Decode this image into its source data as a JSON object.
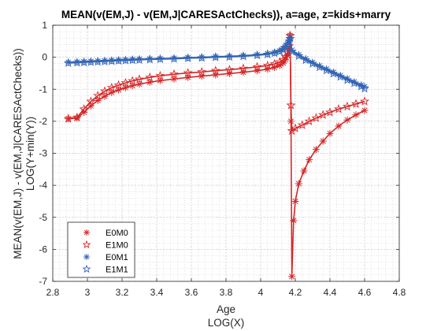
{
  "chart_data": {
    "type": "line",
    "title": "MEAN(v(EM,J) - v(EM,J|CARESActChecks)), a=age, z=kids+marry",
    "xlabel": "Age",
    "xlabel2": "LOG(X)",
    "ylabel": "MEAN(v(EM,J) - v(EM,J|CARESActChecks))",
    "ylabel2": "LOG(Y+min(Y))",
    "xlim": [
      2.8,
      4.8
    ],
    "ylim": [
      -7,
      1
    ],
    "xticks": [
      2.8,
      3,
      3.2,
      3.4,
      3.6,
      3.8,
      4,
      4.2,
      4.4,
      4.6,
      4.8
    ],
    "xtick_labels": [
      "2.8",
      "3",
      "3.2",
      "3.4",
      "3.6",
      "3.8",
      "4",
      "4.2",
      "4.4",
      "4.6",
      "4.8"
    ],
    "yticks": [
      -7,
      -6,
      -5,
      -4,
      -3,
      -2,
      -1,
      0,
      1
    ],
    "ytick_labels": [
      "-7",
      "-6",
      "-5",
      "-4",
      "-3",
      "-2",
      "-1",
      "0",
      "1"
    ],
    "grid": true,
    "minor_grid": true,
    "legend_placement": "bottom-left",
    "series": [
      {
        "name": "E0M0",
        "marker": "asterisk",
        "color": "#d62728",
        "x": [
          2.89,
          2.94,
          2.98,
          3.02,
          3.06,
          3.1,
          3.14,
          3.18,
          3.22,
          3.26,
          3.3,
          3.36,
          3.42,
          3.5,
          3.58,
          3.66,
          3.74,
          3.82,
          3.9,
          3.98,
          4.04,
          4.08,
          4.11,
          4.13,
          4.143,
          4.155,
          4.165,
          4.17,
          4.175,
          4.18,
          4.19,
          4.2,
          4.22,
          4.25,
          4.28,
          4.32,
          4.36,
          4.4,
          4.45,
          4.5,
          4.55,
          4.6
        ],
        "y": [
          -1.92,
          -1.9,
          -1.72,
          -1.52,
          -1.35,
          -1.22,
          -1.1,
          -1.02,
          -0.95,
          -0.89,
          -0.84,
          -0.78,
          -0.73,
          -0.68,
          -0.63,
          -0.59,
          -0.55,
          -0.51,
          -0.47,
          -0.42,
          -0.37,
          -0.32,
          -0.26,
          -0.18,
          -0.08,
          0.05,
          0.25,
          0.68,
          -2.0,
          -6.85,
          -5.1,
          -4.5,
          -3.95,
          -3.55,
          -3.2,
          -2.88,
          -2.62,
          -2.38,
          -2.15,
          -1.96,
          -1.8,
          -1.66
        ]
      },
      {
        "name": "E1M0",
        "marker": "star",
        "color": "#d62728",
        "x": [
          2.89,
          2.94,
          2.98,
          3.02,
          3.06,
          3.1,
          3.14,
          3.18,
          3.22,
          3.26,
          3.3,
          3.36,
          3.42,
          3.5,
          3.58,
          3.66,
          3.74,
          3.82,
          3.9,
          3.98,
          4.04,
          4.08,
          4.11,
          4.13,
          4.143,
          4.155,
          4.165,
          4.17,
          4.175,
          4.18,
          4.2,
          4.24,
          4.28,
          4.32,
          4.36,
          4.4,
          4.45,
          4.5,
          4.55,
          4.6
        ],
        "y": [
          -1.92,
          -1.88,
          -1.62,
          -1.38,
          -1.2,
          -1.06,
          -0.95,
          -0.87,
          -0.8,
          -0.74,
          -0.69,
          -0.63,
          -0.58,
          -0.53,
          -0.49,
          -0.46,
          -0.42,
          -0.39,
          -0.35,
          -0.3,
          -0.26,
          -0.21,
          -0.15,
          -0.08,
          0.02,
          0.15,
          0.35,
          0.68,
          -1.5,
          -2.3,
          -2.22,
          -2.12,
          -2.0,
          -1.9,
          -1.8,
          -1.72,
          -1.62,
          -1.54,
          -1.46,
          -1.38
        ]
      },
      {
        "name": "E0M1",
        "marker": "asterisk",
        "color": "#3465b5",
        "x": [
          2.89,
          2.94,
          2.98,
          3.02,
          3.06,
          3.1,
          3.14,
          3.18,
          3.22,
          3.26,
          3.3,
          3.36,
          3.42,
          3.5,
          3.58,
          3.66,
          3.74,
          3.82,
          3.9,
          3.98,
          4.04,
          4.08,
          4.11,
          4.13,
          4.143,
          4.155,
          4.165,
          4.17,
          4.18,
          4.22,
          4.26,
          4.3,
          4.34,
          4.38,
          4.42,
          4.46,
          4.5,
          4.54,
          4.58,
          4.6
        ],
        "y": [
          -0.16,
          -0.15,
          -0.14,
          -0.13,
          -0.12,
          -0.11,
          -0.1,
          -0.09,
          -0.08,
          -0.07,
          -0.06,
          -0.05,
          -0.04,
          -0.03,
          -0.01,
          0.0,
          0.02,
          0.03,
          0.05,
          0.08,
          0.11,
          0.15,
          0.2,
          0.26,
          0.33,
          0.42,
          0.52,
          0.6,
          0.22,
          0.08,
          -0.05,
          -0.16,
          -0.27,
          -0.37,
          -0.47,
          -0.57,
          -0.67,
          -0.77,
          -0.87,
          -0.92
        ]
      },
      {
        "name": "E1M1",
        "marker": "star",
        "color": "#3465b5",
        "x": [
          2.89,
          2.94,
          2.98,
          3.02,
          3.06,
          3.1,
          3.14,
          3.18,
          3.22,
          3.26,
          3.3,
          3.36,
          3.42,
          3.5,
          3.58,
          3.66,
          3.74,
          3.82,
          3.9,
          3.98,
          4.04,
          4.08,
          4.11,
          4.13,
          4.143,
          4.155,
          4.165,
          4.17,
          4.18,
          4.22,
          4.26,
          4.3,
          4.34,
          4.38,
          4.42,
          4.46,
          4.5,
          4.54,
          4.58,
          4.6
        ],
        "y": [
          -0.18,
          -0.17,
          -0.16,
          -0.15,
          -0.14,
          -0.13,
          -0.12,
          -0.11,
          -0.1,
          -0.09,
          -0.08,
          -0.07,
          -0.06,
          -0.05,
          -0.03,
          -0.02,
          0.0,
          0.01,
          0.03,
          0.06,
          0.09,
          0.13,
          0.18,
          0.24,
          0.31,
          0.4,
          0.5,
          0.58,
          0.18,
          0.04,
          -0.09,
          -0.2,
          -0.31,
          -0.41,
          -0.51,
          -0.61,
          -0.71,
          -0.81,
          -0.91,
          -0.98
        ]
      }
    ]
  }
}
